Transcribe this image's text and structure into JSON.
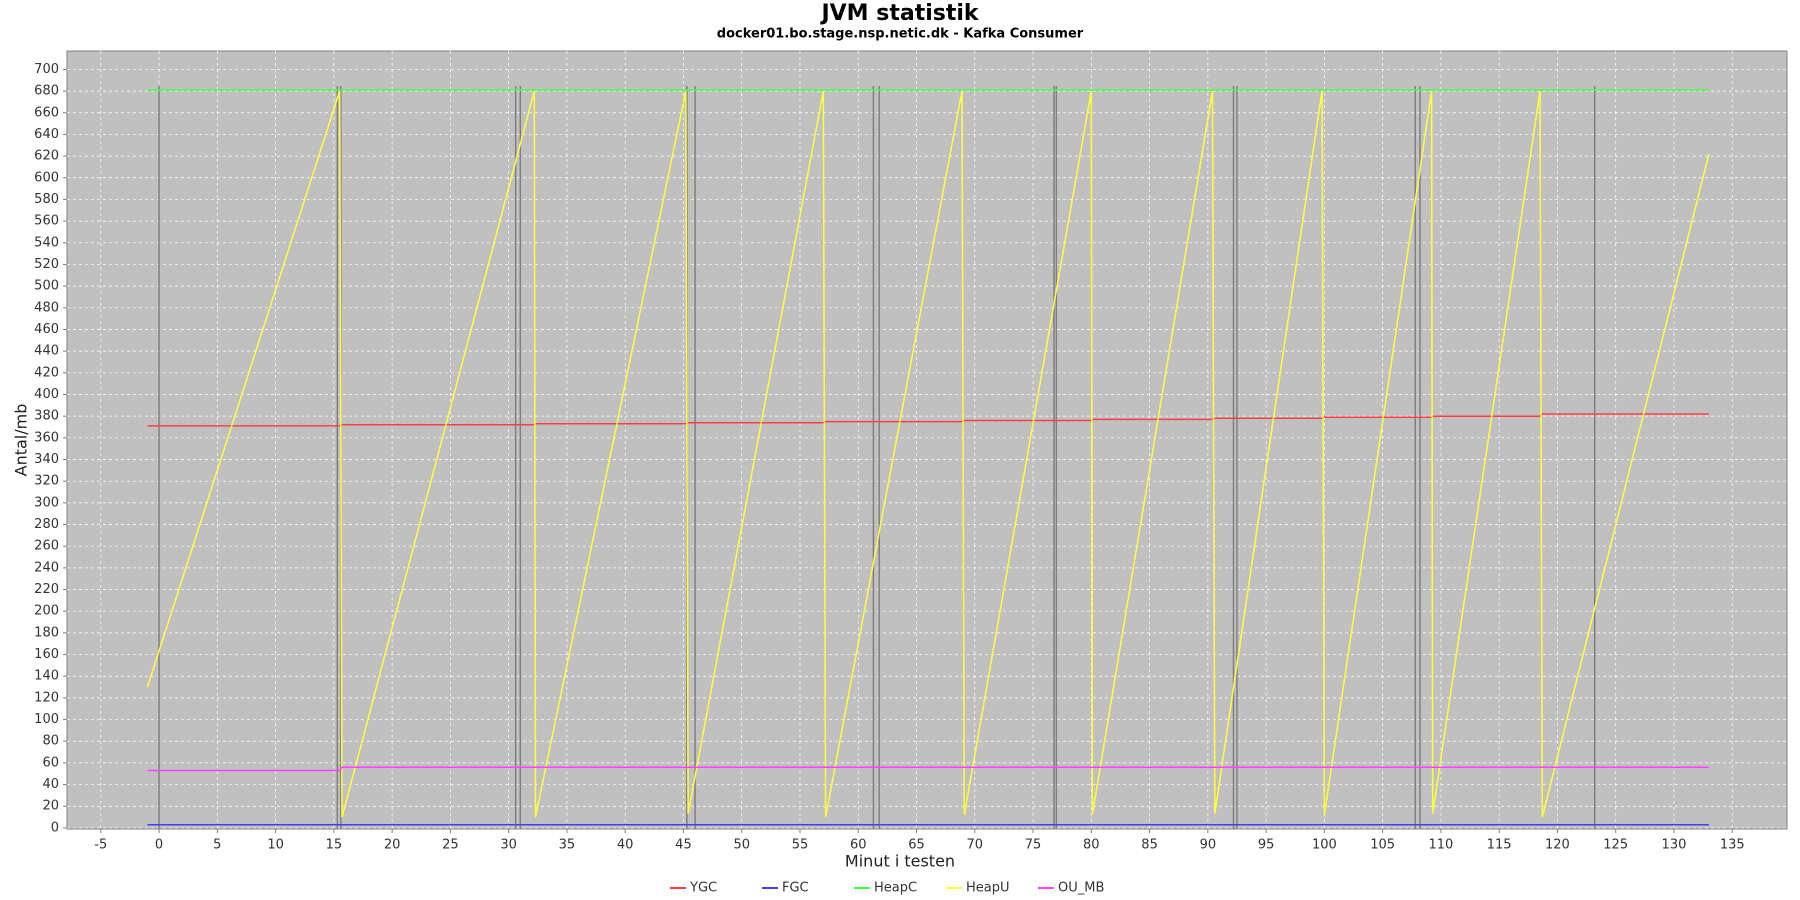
{
  "chart_data": {
    "type": "line",
    "title": "JVM statistik",
    "subtitle": "docker01.bo.stage.nsp.netic.dk - Kafka Consumer",
    "xlabel": "Minut i testen",
    "ylabel": "Antal/mb",
    "x": [
      -1,
      15.5,
      15.7,
      32.2,
      32.3,
      45.2,
      45.4,
      57.0,
      57.2,
      68.9,
      69.1,
      80.0,
      80.1,
      90.4,
      90.6,
      99.8,
      100.0,
      109.2,
      109.3,
      118.5,
      118.7,
      133
    ],
    "series": [
      {
        "name": "YGC",
        "color": "#ff4040",
        "values": [
          371,
          371,
          372,
          372,
          373,
          373,
          374,
          374,
          375,
          375,
          376,
          376,
          377,
          377,
          378,
          378,
          379,
          379,
          380,
          380,
          382,
          382
        ]
      },
      {
        "name": "FGC",
        "color": "#4040ff",
        "values": [
          3,
          3,
          3,
          3,
          3,
          3,
          3,
          3,
          3,
          3,
          3,
          3,
          3,
          3,
          3,
          3,
          3,
          3,
          3,
          3,
          3,
          3
        ]
      },
      {
        "name": "HeapC",
        "color": "#40ff40",
        "values": [
          681,
          681,
          681,
          681,
          681,
          681,
          681,
          681,
          681,
          681,
          681,
          681,
          681,
          681,
          681,
          681,
          681,
          681,
          681,
          681,
          681,
          681
        ]
      },
      {
        "name": "HeapU",
        "color": "#ffff40",
        "values": [
          130,
          680,
          10,
          680,
          10,
          680,
          13,
          680,
          10,
          680,
          12,
          680,
          13,
          680,
          13,
          680,
          12,
          680,
          13,
          680,
          10,
          622
        ]
      },
      {
        "name": "OU_MB",
        "color": "#ff40ff",
        "values": [
          53,
          53,
          56,
          56,
          56,
          56,
          56,
          56,
          56,
          56,
          56,
          56,
          56,
          56,
          56,
          56,
          56,
          56,
          56,
          56,
          56,
          56
        ]
      }
    ],
    "vlines": [
      0,
      15.3,
      15.6,
      30.6,
      31.0,
      45.3,
      46.0,
      61.3,
      61.8,
      76.8,
      77.0,
      92.2,
      92.5,
      107.8,
      108.2,
      123.2
    ],
    "vline_color": "#808080",
    "xlim": [
      -7.9,
      139.7
    ],
    "ylim": [
      -1,
      717
    ],
    "xticks": [
      -5,
      0,
      5,
      10,
      15,
      20,
      25,
      30,
      35,
      40,
      45,
      50,
      55,
      60,
      65,
      70,
      75,
      80,
      85,
      90,
      95,
      100,
      105,
      110,
      115,
      120,
      125,
      130,
      135
    ],
    "yticks": [
      0,
      20,
      40,
      60,
      80,
      100,
      120,
      140,
      160,
      180,
      200,
      220,
      240,
      260,
      280,
      300,
      320,
      340,
      360,
      380,
      400,
      420,
      440,
      460,
      480,
      500,
      520,
      540,
      560,
      580,
      600,
      620,
      640,
      660,
      680,
      700
    ],
    "grid": true,
    "legend": "bottom"
  }
}
